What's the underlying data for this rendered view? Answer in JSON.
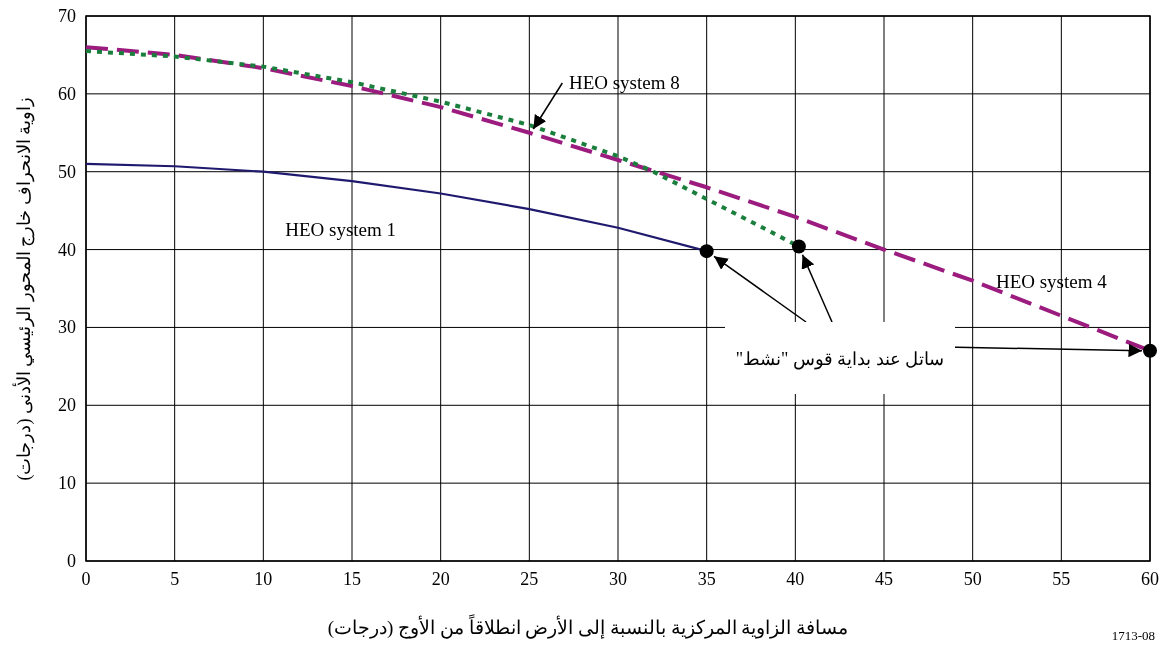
{
  "chart_data": {
    "type": "line",
    "xlabel": "مسافة الزاوية المركزية بالنسبة إلى الأرض انطلاقاً من الأوج (درجات)",
    "ylabel": "زاوية الانحراف خارج المحور الرئيسي الأدنى (درجات)",
    "xlim": [
      0,
      60
    ],
    "xticks": [
      0,
      5,
      10,
      15,
      20,
      25,
      30,
      35,
      40,
      45,
      50,
      55,
      60
    ],
    "ylim": [
      0,
      70
    ],
    "yticks": [
      0,
      10,
      20,
      30,
      40,
      50,
      60,
      70
    ],
    "grid": true,
    "series": [
      {
        "name": "HEO system 1",
        "color": "#1f1a6e",
        "line_style": "solid",
        "x": [
          0,
          5,
          10,
          15,
          20,
          25,
          30,
          35
        ],
        "values": [
          51,
          50.7,
          50,
          48.8,
          47.2,
          45.2,
          42.8,
          39.8
        ]
      },
      {
        "name": "HEO system 4",
        "color": "#9b1b7e",
        "line_style": "dashed",
        "x": [
          0,
          5,
          10,
          15,
          20,
          25,
          30,
          35,
          40,
          45,
          50,
          55,
          60
        ],
        "values": [
          66,
          65,
          63.3,
          61,
          58.3,
          55,
          51.5,
          48,
          44.2,
          40,
          36,
          31.5,
          27
        ]
      },
      {
        "name": "HEO system 8",
        "color": "#1a7f3c",
        "line_style": "dotted",
        "x": [
          0,
          5,
          10,
          15,
          20,
          25,
          30,
          32,
          35,
          38,
          40.2
        ],
        "values": [
          65.5,
          64.8,
          63.5,
          61.5,
          59,
          56,
          52,
          50,
          46.5,
          43,
          40.4
        ]
      },
      {
        "type": "scatter",
        "color": "#000000",
        "marker": "circle",
        "x": [
          35,
          40.2,
          60
        ],
        "values": [
          39.8,
          40.4,
          27
        ]
      }
    ],
    "annotations": [
      {
        "text": "ساتل عند بداية قوس \"نشط\"",
        "x": 60,
        "y": 27
      },
      "1713-08"
    ]
  }
}
